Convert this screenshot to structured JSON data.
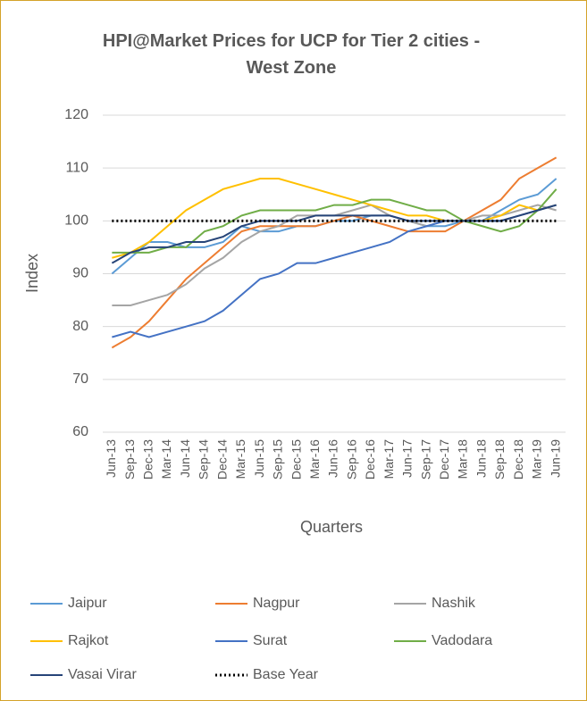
{
  "chart_data": {
    "type": "line",
    "title": "HPI@Market Prices for UCP for Tier 2 cities - West Zone",
    "x_label": "Quarters",
    "y_label": "Index",
    "categories": [
      "Jun-13",
      "Sep-13",
      "Dec-13",
      "Mar-14",
      "Jun-14",
      "Sep-14",
      "Dec-14",
      "Mar-15",
      "Jun-15",
      "Sep-15",
      "Dec-15",
      "Mar-16",
      "Jun-16",
      "Sep-16",
      "Dec-16",
      "Mar-17",
      "Jun-17",
      "Sep-17",
      "Dec-17",
      "Mar-18",
      "Jun-18",
      "Sep-18",
      "Dec-18",
      "Mar-19",
      "Jun-19"
    ],
    "ylim": [
      60,
      120
    ],
    "yticks": [
      60,
      70,
      80,
      90,
      100,
      110,
      120
    ],
    "grid": true,
    "legend": "bottom",
    "series": [
      {
        "name": "Jaipur",
        "color": "#5b9bd5",
        "values": [
          90,
          93,
          96,
          96,
          95,
          95,
          96,
          99,
          98,
          98,
          99,
          99,
          100,
          100,
          101,
          101,
          100,
          99,
          99,
          100,
          100,
          102,
          104,
          105,
          108
        ]
      },
      {
        "name": "Nagpur",
        "color": "#ed7d31",
        "values": [
          76,
          78,
          81,
          85,
          89,
          92,
          95,
          98,
          99,
          99,
          99,
          99,
          100,
          101,
          100,
          99,
          98,
          98,
          98,
          100,
          102,
          104,
          108,
          110,
          112
        ]
      },
      {
        "name": "Nashik",
        "color": "#a5a5a5",
        "values": [
          84,
          84,
          85,
          86,
          88,
          91,
          93,
          96,
          98,
          99,
          101,
          101,
          101,
          102,
          103,
          101,
          100,
          99,
          100,
          100,
          101,
          101,
          102,
          103,
          102
        ]
      },
      {
        "name": "Rajkot",
        "color": "#ffc000",
        "values": [
          93,
          94,
          96,
          99,
          102,
          104,
          106,
          107,
          108,
          108,
          107,
          106,
          105,
          104,
          103,
          102,
          101,
          101,
          100,
          100,
          100,
          101,
          103,
          102,
          103
        ]
      },
      {
        "name": "Surat",
        "color": "#4472c4",
        "values": [
          78,
          79,
          78,
          79,
          80,
          81,
          83,
          86,
          89,
          90,
          92,
          92,
          93,
          94,
          95,
          96,
          98,
          99,
          100,
          100,
          100,
          100,
          101,
          102,
          103
        ]
      },
      {
        "name": "Vadodara",
        "color": "#70ad47",
        "values": [
          94,
          94,
          94,
          95,
          95,
          98,
          99,
          101,
          102,
          102,
          102,
          102,
          103,
          103,
          104,
          104,
          103,
          102,
          102,
          100,
          99,
          98,
          99,
          102,
          106
        ]
      },
      {
        "name": "Vasai Virar",
        "color": "#264478",
        "values": [
          92,
          94,
          95,
          95,
          96,
          96,
          97,
          99,
          100,
          100,
          100,
          101,
          101,
          101,
          101,
          101,
          100,
          100,
          100,
          100,
          100,
          100,
          101,
          102,
          103
        ]
      },
      {
        "name": "Base Year",
        "color": "#000000",
        "dotted": true,
        "values": [
          100,
          100,
          100,
          100,
          100,
          100,
          100,
          100,
          100,
          100,
          100,
          100,
          100,
          100,
          100,
          100,
          100,
          100,
          100,
          100,
          100,
          100,
          100,
          100,
          100
        ]
      }
    ]
  }
}
